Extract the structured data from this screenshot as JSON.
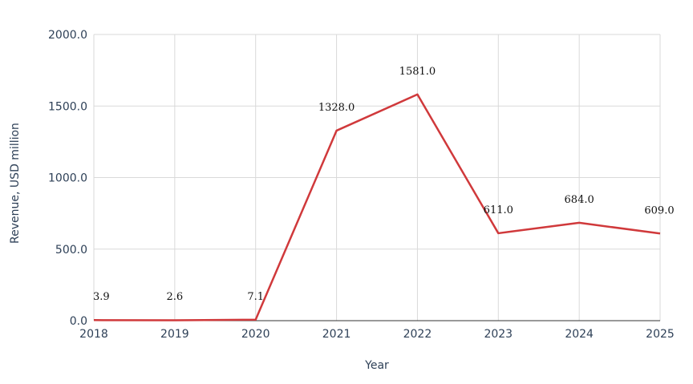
{
  "chart_data": {
    "type": "line",
    "title": "",
    "xlabel": "Year",
    "ylabel": "Revenue, USD million",
    "x": [
      "2018",
      "2019",
      "2020",
      "2021",
      "2022",
      "2023",
      "2024",
      "2025"
    ],
    "ylim": [
      0,
      2000
    ],
    "yticks": [
      "0.0",
      "500.0",
      "1000.0",
      "1500.0",
      "2000.0"
    ],
    "series": [
      {
        "values": [
          3.9,
          2.6,
          7.1,
          1328.0,
          1581.0,
          611.0,
          684.0,
          609.0
        ],
        "labels": [
          "3.9",
          "2.6",
          "7.1",
          "1328.0",
          "1581.0",
          "611.0",
          "684.0",
          "609.0"
        ],
        "color": "#d0393b"
      }
    ],
    "grid": true,
    "legend": "none"
  }
}
